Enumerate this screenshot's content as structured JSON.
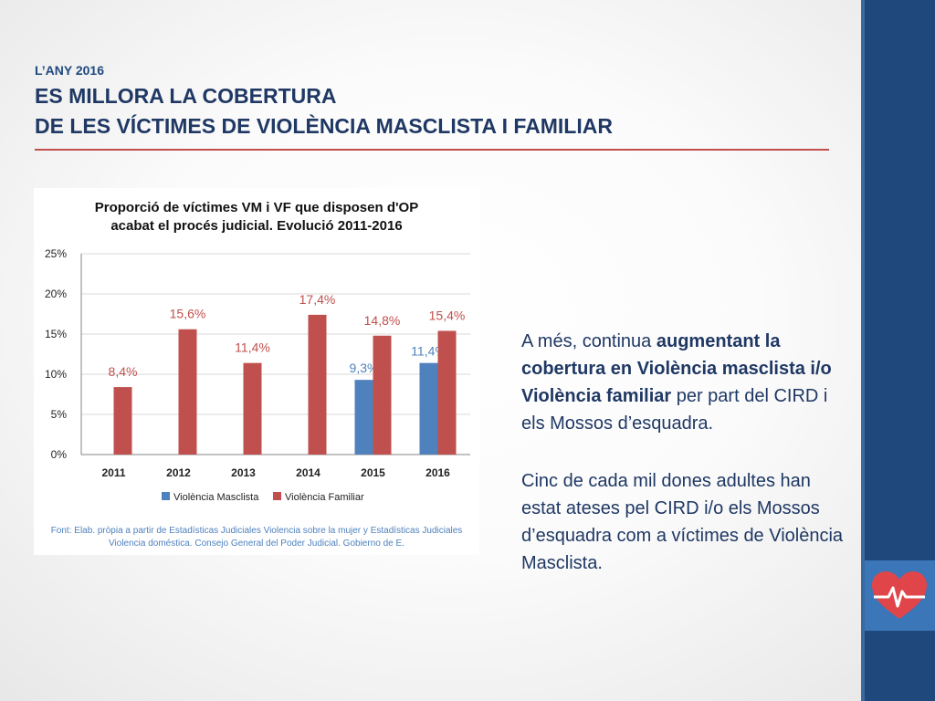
{
  "header": {
    "kicker": "L’ANY 2016",
    "title_line1": "ES MILLORA LA COBERTURA",
    "title_line2": "DE LES VÍCTIMES DE VIOLÈNCIA MASCLISTA I FAMILIAR"
  },
  "chart_data": {
    "type": "bar",
    "title_line1": "Proporció de víctimes VM i VF que disposen d'OP",
    "title_line2": "acabat el procés judicial. Evolució 2011-2016",
    "categories": [
      "2011",
      "2012",
      "2013",
      "2014",
      "2015",
      "2016"
    ],
    "series": [
      {
        "name": "Violència Masclista",
        "color": "#4f81bd",
        "values": [
          null,
          null,
          null,
          null,
          9.3,
          11.4
        ],
        "labels": [
          "",
          "",
          "",
          "",
          "9,3%",
          "11,4%"
        ]
      },
      {
        "name": "Violència Familiar",
        "color": "#c0504d",
        "values": [
          8.4,
          15.6,
          11.4,
          17.4,
          14.8,
          15.4
        ],
        "labels": [
          "8,4%",
          "15,6%",
          "11,4%",
          "17,4%",
          "14,8%",
          "15,4%"
        ]
      }
    ],
    "ylim": [
      0,
      25
    ],
    "yticks": [
      "0%",
      "5%",
      "10%",
      "15%",
      "20%",
      "25%"
    ],
    "ytick_values": [
      0,
      5,
      10,
      15,
      20,
      25
    ],
    "grid": true,
    "legend_position": "bottom",
    "source_note": "Font: Elab. pròpia a partir de Estadísticas Judiciales Violencia sobre la mujer y Estadísticas Judiciales Violencia doméstica. Consejo General del Poder Judicial. Gobierno de E."
  },
  "body": {
    "p1_pre": "A més, continua ",
    "p1_bold": "augmentant la cobertura en Violència masclista i/o Violència familiar",
    "p1_post": " per part del CIRD i els Mossos  d’esquadra.",
    "p2": "Cinc de cada mil dones adultes han estat ateses pel CIRD i/o els Mossos d’esquadra com a víctimes de Violència Masclista."
  },
  "logo": {
    "icon": "heart-pulse-icon"
  }
}
